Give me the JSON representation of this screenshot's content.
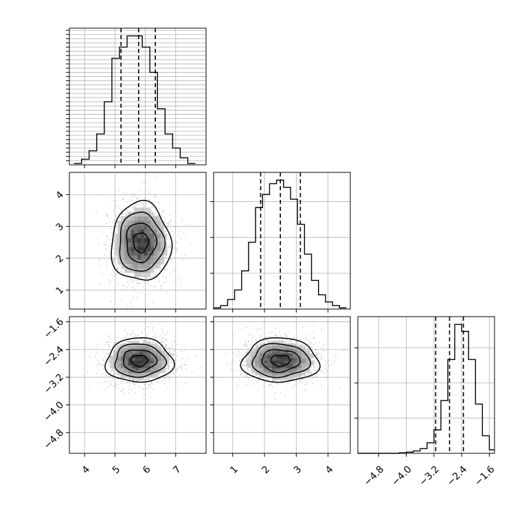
{
  "chart_data": {
    "type": "corner",
    "grid": true,
    "colors": {
      "hist": "#000000",
      "density": "#000000",
      "grid": "#b0b0b0",
      "scatter": "#9a9a9a"
    },
    "parameters": [
      {
        "range": [
          3.5,
          8.0
        ],
        "ticks": [
          "4",
          "5",
          "6",
          "7"
        ],
        "tick_values": [
          4,
          5,
          6,
          7
        ],
        "quantile_lines": [
          5.2,
          5.78,
          6.33
        ]
      },
      {
        "range": [
          0.4,
          4.7
        ],
        "ticks": [
          "1",
          "2",
          "3",
          "4"
        ],
        "tick_values": [
          1,
          2,
          3,
          4
        ],
        "quantile_lines": [
          1.88,
          2.5,
          3.13
        ]
      },
      {
        "range": [
          -5.4,
          -1.45
        ],
        "ticks": [
          "−4.8",
          "−4.0",
          "−3.2",
          "−2.4",
          "−1.6"
        ],
        "tick_values": [
          -4.8,
          -4.0,
          -3.2,
          -2.4,
          -1.6
        ],
        "quantile_lines": [
          -3.15,
          -2.75,
          -2.35
        ]
      }
    ],
    "histograms": [
      {
        "param": 0,
        "bin_edges": [
          3.65,
          3.9,
          4.15,
          4.4,
          4.65,
          4.9,
          5.15,
          5.4,
          5.65,
          5.9,
          6.15,
          6.4,
          6.65,
          6.9,
          7.15,
          7.4,
          7.65
        ],
        "counts": [
          1,
          4,
          10,
          22,
          45,
          76,
          84,
          92,
          92,
          84,
          66,
          40,
          22,
          12,
          5,
          1
        ]
      },
      {
        "param": 1,
        "bin_edges": [
          0.4,
          0.62,
          0.84,
          1.06,
          1.28,
          1.5,
          1.72,
          1.94,
          2.16,
          2.38,
          2.6,
          2.82,
          3.04,
          3.26,
          3.48,
          3.7,
          3.92,
          4.14,
          4.36,
          4.58
        ],
        "counts": [
          1,
          3,
          8,
          16,
          32,
          56,
          85,
          96,
          105,
          108,
          102,
          92,
          71,
          46,
          24,
          12,
          6,
          3,
          1
        ]
      },
      {
        "param": 2,
        "bin_edges": [
          -5.4,
          -5.2,
          -5.0,
          -4.8,
          -4.6,
          -4.4,
          -4.2,
          -4.0,
          -3.8,
          -3.6,
          -3.4,
          -3.2,
          -3.0,
          -2.8,
          -2.6,
          -2.4,
          -2.2,
          -2.0,
          -1.8,
          -1.6,
          -1.45
        ],
        "counts": [
          0,
          0,
          0,
          0,
          0,
          0,
          0.5,
          1,
          2,
          4,
          9,
          20,
          45,
          80,
          110,
          104,
          80,
          42,
          15,
          3
        ]
      }
    ],
    "density_panels": [
      {
        "x_param": 0,
        "y_param": 1,
        "center": [
          5.85,
          2.5
        ],
        "sigma": [
          0.49,
          0.62
        ]
      },
      {
        "x_param": 0,
        "y_param": 2,
        "center": [
          5.8,
          -2.72
        ],
        "sigma": [
          0.55,
          0.32
        ]
      },
      {
        "x_param": 1,
        "y_param": 2,
        "center": [
          2.5,
          -2.72
        ],
        "sigma": [
          0.6,
          0.32
        ]
      }
    ]
  }
}
